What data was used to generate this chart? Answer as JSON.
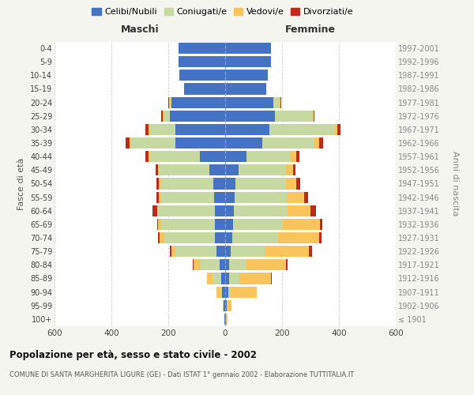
{
  "age_groups": [
    "100+",
    "95-99",
    "90-94",
    "85-89",
    "80-84",
    "75-79",
    "70-74",
    "65-69",
    "60-64",
    "55-59",
    "50-54",
    "45-49",
    "40-44",
    "35-39",
    "30-34",
    "25-29",
    "20-24",
    "15-19",
    "10-14",
    "5-9",
    "0-4"
  ],
  "birth_years": [
    "≤ 1901",
    "1902-1906",
    "1907-1911",
    "1912-1916",
    "1917-1921",
    "1922-1926",
    "1927-1931",
    "1932-1936",
    "1937-1941",
    "1942-1946",
    "1947-1951",
    "1952-1956",
    "1957-1961",
    "1962-1966",
    "1967-1971",
    "1972-1976",
    "1977-1981",
    "1982-1986",
    "1987-1991",
    "1992-1996",
    "1997-2001"
  ],
  "maschi_celibe": [
    2,
    5,
    10,
    15,
    20,
    30,
    35,
    35,
    35,
    38,
    42,
    55,
    90,
    175,
    175,
    195,
    190,
    145,
    160,
    165,
    165
  ],
  "maschi_coniugato": [
    0,
    2,
    8,
    30,
    65,
    145,
    180,
    190,
    200,
    190,
    185,
    175,
    175,
    155,
    90,
    20,
    5,
    0,
    0,
    0,
    0
  ],
  "maschi_vedovo": [
    0,
    2,
    12,
    20,
    25,
    15,
    15,
    10,
    5,
    5,
    5,
    5,
    5,
    5,
    5,
    5,
    2,
    0,
    0,
    0,
    0
  ],
  "maschi_divorziato": [
    0,
    0,
    0,
    0,
    5,
    5,
    5,
    5,
    15,
    10,
    10,
    10,
    10,
    15,
    10,
    5,
    2,
    0,
    0,
    0,
    0
  ],
  "femmine_celibe": [
    2,
    5,
    10,
    15,
    15,
    20,
    25,
    28,
    30,
    32,
    35,
    48,
    75,
    130,
    155,
    175,
    170,
    145,
    150,
    160,
    160
  ],
  "femmine_coniugata": [
    0,
    2,
    10,
    35,
    60,
    120,
    160,
    175,
    190,
    185,
    180,
    165,
    155,
    185,
    230,
    130,
    20,
    0,
    0,
    0,
    0
  ],
  "femmine_vedova": [
    5,
    15,
    90,
    110,
    140,
    155,
    145,
    130,
    80,
    60,
    35,
    25,
    20,
    15,
    10,
    5,
    5,
    0,
    0,
    0,
    0
  ],
  "femmine_divorziata": [
    0,
    0,
    0,
    5,
    5,
    10,
    10,
    10,
    20,
    15,
    15,
    10,
    10,
    15,
    10,
    5,
    2,
    0,
    0,
    0,
    0
  ],
  "colors": {
    "celibe": "#4472C4",
    "coniugato": "#c5d9a0",
    "vedovo": "#f9c55a",
    "divorziato": "#c0281c"
  },
  "title": "Popolazione per età, sesso e stato civile - 2002",
  "subtitle": "COMUNE DI SANTA MARGHERITA LIGURE (GE) - Dati ISTAT 1° gennaio 2002 - Elaborazione TUTTITALIA.IT",
  "xlabel_left": "Maschi",
  "xlabel_right": "Femmine",
  "ylabel_left": "Fasce di età",
  "ylabel_right": "Anni di nascita",
  "xlim": 600,
  "bg_color": "#f5f5f0",
  "plot_bg": "#ffffff",
  "grid_color": "#cccccc"
}
